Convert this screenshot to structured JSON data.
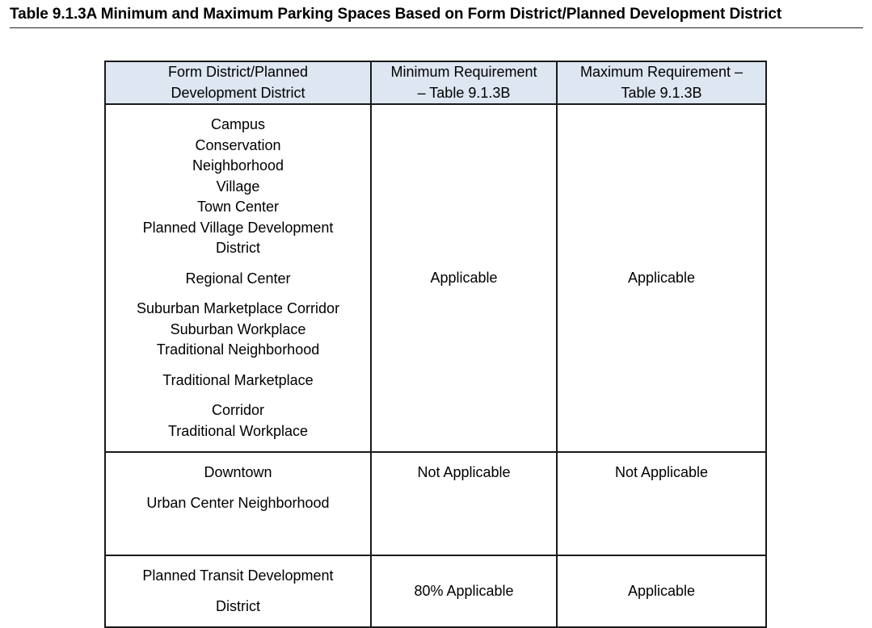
{
  "document": {
    "title": "Table 9.1.3A Minimum and Maximum Parking Spaces Based on Form District/Planned Development District"
  },
  "table": {
    "headers": [
      [
        "Form District/Planned",
        "Development District"
      ],
      [
        "Minimum Requirement",
        "– Table 9.1.3B"
      ],
      [
        "Maximum Requirement –",
        "Table 9.1.3B"
      ]
    ],
    "rows": [
      {
        "districts": [
          "Campus",
          "Conservation",
          "Neighborhood",
          "Village",
          "Town Center",
          "Planned Village Development",
          "District",
          "Regional Center",
          "Suburban Marketplace Corridor",
          "Suburban Workplace",
          "Traditional Neighborhood",
          "Traditional Marketplace",
          "Corridor",
          "Traditional Workplace"
        ],
        "minimum": "Applicable",
        "maximum": "Applicable"
      },
      {
        "districts": [
          "Downtown",
          "Urban Center Neighborhood"
        ],
        "minimum": "Not Applicable",
        "maximum": "Not Applicable"
      },
      {
        "districts": [
          "Planned Transit Development",
          "District"
        ],
        "minimum": "80% Applicable",
        "maximum": "Applicable"
      }
    ]
  }
}
